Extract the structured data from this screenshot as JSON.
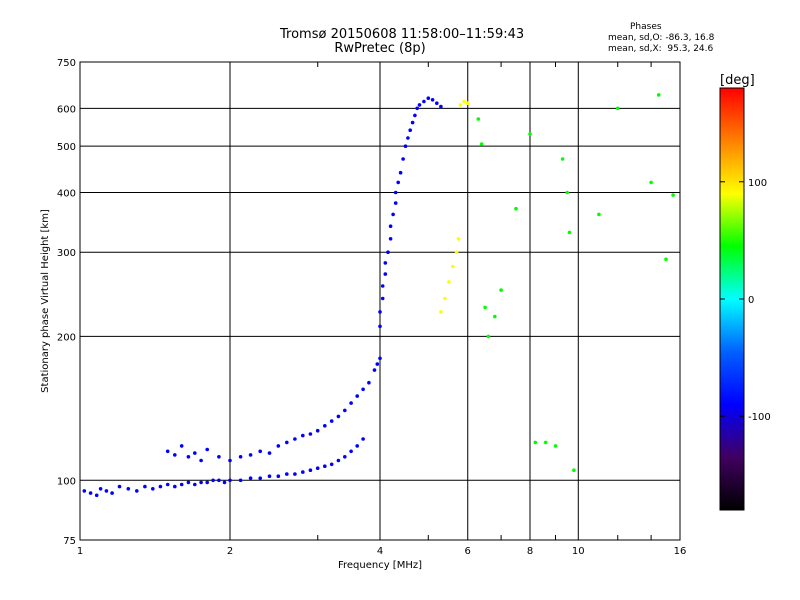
{
  "chart_data": {
    "type": "scatter",
    "title": "Tromsø 20150608 11:58:00–11:59:43",
    "subtitle": "RwPretec (8p)",
    "xlabel": "Frequency [MHz]",
    "ylabel": "Stationary phase Virtual Height [km]",
    "x_scale": "log",
    "y_scale": "log",
    "xlim": [
      1,
      16
    ],
    "ylim": [
      75,
      750
    ],
    "x_ticks": [
      1,
      2,
      4,
      6,
      8,
      10,
      16
    ],
    "y_ticks": [
      75,
      100,
      200,
      300,
      400,
      500,
      600,
      750
    ],
    "grid": true,
    "stats": {
      "heading": "Phases",
      "o_line": "mean, sd,O: -86.3, 16.8",
      "x_line": "mean, sd,X:  95.3, 24.6"
    },
    "colorbar": {
      "label": "[deg]",
      "range": [
        -180,
        180
      ],
      "ticks": [
        100,
        0,
        -100
      ],
      "colors": [
        "#ff0000",
        "#ff8000",
        "#ffff00",
        "#00ff00",
        "#00ffff",
        "#0060ff",
        "#0000ff",
        "#400060",
        "#000000"
      ]
    },
    "series": [
      {
        "trace": "low_E_trace",
        "color_phase": -100,
        "points": [
          [
            1.02,
            95
          ],
          [
            1.05,
            94
          ],
          [
            1.08,
            93
          ],
          [
            1.1,
            96
          ],
          [
            1.13,
            95
          ],
          [
            1.16,
            94
          ],
          [
            1.2,
            97
          ],
          [
            1.25,
            96
          ],
          [
            1.3,
            95
          ],
          [
            1.35,
            97
          ],
          [
            1.4,
            96
          ],
          [
            1.45,
            97
          ],
          [
            1.5,
            98
          ],
          [
            1.55,
            97
          ],
          [
            1.6,
            98
          ],
          [
            1.65,
            99
          ],
          [
            1.7,
            98
          ],
          [
            1.75,
            99
          ],
          [
            1.8,
            99
          ],
          [
            1.85,
            100
          ],
          [
            1.9,
            100
          ],
          [
            1.95,
            99
          ],
          [
            2.0,
            100
          ],
          [
            2.1,
            100
          ],
          [
            2.2,
            101
          ],
          [
            2.3,
            101
          ],
          [
            2.4,
            102
          ],
          [
            2.5,
            102
          ],
          [
            2.6,
            103
          ],
          [
            2.7,
            103
          ],
          [
            2.8,
            104
          ],
          [
            2.9,
            105
          ],
          [
            3.0,
            106
          ],
          [
            3.1,
            107
          ],
          [
            3.2,
            108
          ],
          [
            3.3,
            110
          ],
          [
            3.4,
            112
          ],
          [
            3.5,
            115
          ],
          [
            3.6,
            118
          ],
          [
            3.7,
            122
          ]
        ]
      },
      {
        "trace": "upper_E_trace",
        "color_phase": -90,
        "points": [
          [
            1.5,
            115
          ],
          [
            1.55,
            113
          ],
          [
            1.6,
            118
          ],
          [
            1.65,
            112
          ],
          [
            1.7,
            114
          ],
          [
            1.75,
            110
          ],
          [
            1.8,
            116
          ],
          [
            1.9,
            112
          ],
          [
            2.0,
            110
          ],
          [
            2.1,
            112
          ],
          [
            2.2,
            113
          ],
          [
            2.3,
            115
          ],
          [
            2.4,
            114
          ],
          [
            2.5,
            118
          ],
          [
            2.6,
            120
          ],
          [
            2.7,
            122
          ],
          [
            2.8,
            124
          ],
          [
            2.9,
            125
          ],
          [
            3.0,
            127
          ],
          [
            3.1,
            130
          ],
          [
            3.2,
            133
          ],
          [
            3.3,
            136
          ],
          [
            3.4,
            140
          ],
          [
            3.5,
            145
          ],
          [
            3.6,
            150
          ],
          [
            3.7,
            155
          ],
          [
            3.8,
            160
          ],
          [
            3.9,
            170
          ],
          [
            3.95,
            175
          ],
          [
            4.0,
            180
          ]
        ]
      },
      {
        "trace": "F_trace",
        "color_phase": -100,
        "points": [
          [
            4.0,
            210
          ],
          [
            4.0,
            225
          ],
          [
            4.05,
            240
          ],
          [
            4.05,
            255
          ],
          [
            4.1,
            270
          ],
          [
            4.1,
            285
          ],
          [
            4.15,
            300
          ],
          [
            4.2,
            320
          ],
          [
            4.2,
            340
          ],
          [
            4.25,
            360
          ],
          [
            4.3,
            380
          ],
          [
            4.3,
            400
          ],
          [
            4.35,
            420
          ],
          [
            4.4,
            440
          ],
          [
            4.45,
            470
          ],
          [
            4.5,
            500
          ],
          [
            4.55,
            520
          ],
          [
            4.6,
            540
          ],
          [
            4.65,
            560
          ],
          [
            4.7,
            580
          ],
          [
            4.75,
            600
          ],
          [
            4.8,
            610
          ],
          [
            4.9,
            620
          ],
          [
            5.0,
            630
          ],
          [
            5.1,
            625
          ],
          [
            5.2,
            615
          ],
          [
            5.3,
            605
          ]
        ]
      },
      {
        "trace": "X_trace",
        "color_phase": 95,
        "points": [
          [
            5.3,
            225
          ],
          [
            5.4,
            240
          ],
          [
            5.5,
            260
          ],
          [
            5.6,
            280
          ],
          [
            5.7,
            300
          ],
          [
            5.75,
            320
          ],
          [
            5.8,
            610
          ],
          [
            5.9,
            620
          ],
          [
            6.0,
            615
          ]
        ]
      },
      {
        "trace": "scattered_echoes",
        "color_phase": 60,
        "points": [
          [
            6.3,
            570
          ],
          [
            6.4,
            505
          ],
          [
            6.5,
            230
          ],
          [
            6.6,
            200
          ],
          [
            6.8,
            220
          ],
          [
            7.0,
            250
          ],
          [
            7.5,
            370
          ],
          [
            8.0,
            530
          ],
          [
            8.2,
            120
          ],
          [
            8.6,
            120
          ],
          [
            9.0,
            118
          ],
          [
            9.3,
            470
          ],
          [
            9.5,
            400
          ],
          [
            9.6,
            330
          ],
          [
            9.8,
            105
          ],
          [
            11.0,
            360
          ],
          [
            12.0,
            600
          ],
          [
            14.0,
            420
          ],
          [
            14.5,
            640
          ],
          [
            15.0,
            290
          ],
          [
            15.5,
            395
          ]
        ]
      }
    ]
  }
}
